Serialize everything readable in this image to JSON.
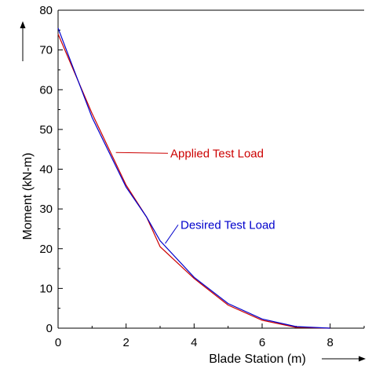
{
  "chart_data": {
    "type": "line",
    "xlabel": "Blade Station (m)",
    "ylabel": "Moment (kN-m)",
    "xlim": [
      0,
      9
    ],
    "ylim": [
      0,
      80
    ],
    "x_ticks": [
      "0",
      "2",
      "4",
      "6",
      "8"
    ],
    "y_ticks": [
      "0",
      "10",
      "20",
      "30",
      "40",
      "50",
      "60",
      "70",
      "80"
    ],
    "grid": false,
    "series": [
      {
        "name": "Applied Test Load",
        "color": "#cc0000",
        "x": [
          0,
          1,
          2,
          2.6,
          3,
          4,
          5,
          6,
          7,
          8
        ],
        "y": [
          74,
          54,
          36,
          28,
          20.5,
          12.5,
          5.8,
          2,
          0.2,
          0
        ]
      },
      {
        "name": "Desired Test Load",
        "color": "#0000cc",
        "x": [
          0,
          1,
          2,
          2.6,
          3,
          4,
          5,
          6,
          7,
          8
        ],
        "y": [
          75.5,
          53,
          35.5,
          28,
          22,
          12.8,
          6.2,
          2.3,
          0.4,
          0
        ]
      }
    ],
    "annotations": [
      {
        "text": "Applied Test Load",
        "color": "#cc0000",
        "x": 3.3,
        "y": 44,
        "anchor_x": 1.7,
        "anchor_y": 44.2
      },
      {
        "text": "Desired Test Load",
        "color": "#0000cc",
        "x": 3.6,
        "y": 26,
        "anchor_x": 3.15,
        "anchor_y": 21.3
      }
    ]
  }
}
